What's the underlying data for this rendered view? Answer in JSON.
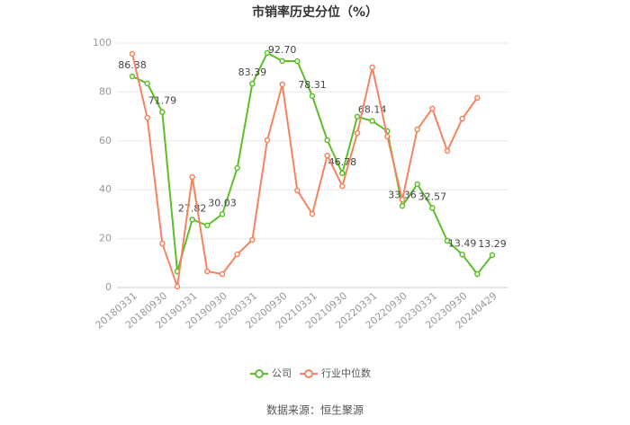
{
  "chart_data": {
    "type": "line",
    "title": "市销率历史分位（%）",
    "source": "数据来源：恒生聚源",
    "categories": [
      "20180331",
      null,
      "20180930",
      null,
      "20190331",
      null,
      "20190930",
      null,
      "20200331",
      null,
      "20200930",
      null,
      "20210331",
      null,
      "20210930",
      null,
      "20220331",
      null,
      "20220930",
      null,
      "20230331",
      null,
      "20230930",
      null,
      "20240429"
    ],
    "series": [
      {
        "name": "公司",
        "color": "#5cbf2a",
        "values": [
          86.38,
          83.5,
          71.79,
          6.6,
          27.82,
          25.4,
          30.03,
          48.9,
          83.39,
          96,
          92.7,
          92.6,
          78.31,
          60.3,
          46.78,
          69.9,
          68.14,
          64,
          33.36,
          42.3,
          32.57,
          19.1,
          13.49,
          5.5,
          13.29
        ],
        "value_labels": [
          "86.38",
          null,
          "71.79",
          null,
          "27.82",
          null,
          "30.03",
          null,
          "83.39",
          null,
          "92.70",
          null,
          "78.31",
          null,
          "46.78",
          null,
          "68.14",
          null,
          "33.36",
          null,
          "32.57",
          null,
          "13.49",
          null,
          "13.29"
        ]
      },
      {
        "name": "行业中位数",
        "color": "#f4845f",
        "values": [
          95.6,
          69.5,
          18,
          0.4,
          45.2,
          6.6,
          5.5,
          13.6,
          19.5,
          60.3,
          83.1,
          39.7,
          30.1,
          54,
          41.5,
          63.2,
          90.1,
          61.8,
          36,
          64.7,
          73.2,
          55.9,
          69.1,
          77.6,
          null
        ]
      }
    ],
    "ylim": [
      0,
      100
    ],
    "yticks": [
      0,
      20,
      40,
      60,
      80,
      100
    ],
    "grid": true,
    "legend": "bottom"
  }
}
